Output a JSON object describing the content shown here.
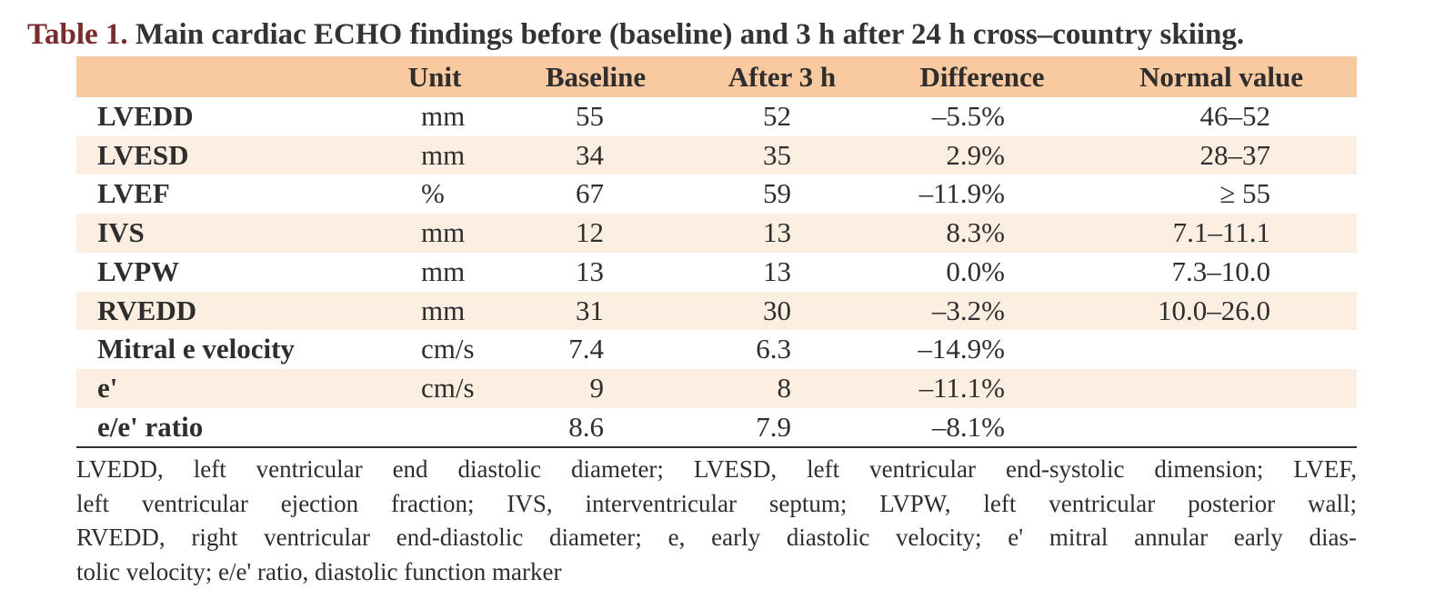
{
  "title": {
    "label": "Table 1.",
    "text": "Main cardiac ECHO findings before (baseline) and 3 h after 24 h cross–country skiing."
  },
  "table": {
    "header": [
      null,
      "Unit",
      "Baseline",
      "After 3 h",
      "Difference",
      "Normal value"
    ],
    "rows": [
      [
        "LVEDD",
        "mm",
        "55",
        "52",
        "–5.5%",
        "46–52"
      ],
      [
        "LVESD",
        "mm",
        "34",
        "35",
        "2.9%",
        "28–37"
      ],
      [
        "LVEF",
        "%",
        "67",
        "59",
        "–11.9%",
        "≥ 55"
      ],
      [
        "IVS",
        "mm",
        "12",
        "13",
        "8.3%",
        "7.1–11.1"
      ],
      [
        "LVPW",
        "mm",
        "13",
        "13",
        "0.0%",
        "7.3–10.0"
      ],
      [
        "RVEDD",
        "mm",
        "31",
        "30",
        "–3.2%",
        "10.0–26.0"
      ],
      [
        "Mitral e velocity",
        "cm/s",
        "7.4",
        "6.3",
        "–14.9%",
        null
      ],
      [
        "e'",
        "cm/s",
        "9",
        "8",
        "–11.1%",
        null
      ],
      [
        "e/e' ratio",
        null,
        "8.6",
        "7.9",
        "–8.1%",
        null
      ]
    ]
  },
  "footnote": {
    "lines": [
      "LVEDD, left ventricular end diastolic diameter; LVESD, left ventricular end-systolic dimension; LVEF,",
      "left ventricular ejection fraction; IVS, interventricular septum; LVPW, left ventricular posterior wall;",
      "RVEDD, right ventricular end-diastolic diameter; e, early diastolic velocity; e' mitral annular early dias-",
      "tolic velocity; e/e' ratio, diastolic function marker"
    ]
  }
}
